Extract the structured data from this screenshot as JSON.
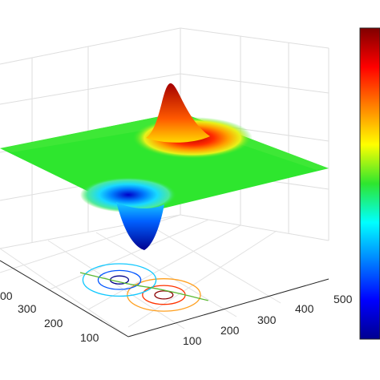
{
  "chart_data": {
    "type": "surface",
    "title": "",
    "xlabel": "",
    "ylabel": "",
    "zlabel": "",
    "x_ticks": [
      "100",
      "200",
      "300",
      "400",
      "500"
    ],
    "y_ticks": [
      "100",
      "200",
      "300",
      "00"
    ],
    "xlim": [
      0,
      500
    ],
    "ylim": [
      0,
      500
    ],
    "grid": true,
    "colormap": "jet",
    "colorbar": "right",
    "surface": {
      "baseline": 0,
      "peaks": [
        {
          "kind": "peak",
          "x": 300,
          "y": 330,
          "height": 1.0,
          "width": 45
        },
        {
          "kind": "trough",
          "x": 170,
          "y": 300,
          "height": -1.0,
          "width": 45
        }
      ]
    },
    "contours": [
      {
        "center_x": 300,
        "center_y": 330,
        "radii": [
          12,
          28,
          48
        ],
        "colors": [
          "#8b0000",
          "#ff3300",
          "#ffa020"
        ]
      },
      {
        "center_x": 170,
        "center_y": 300,
        "radii": [
          12,
          28,
          48
        ],
        "colors": [
          "#00008b",
          "#0055ff",
          "#10c8ff"
        ]
      },
      {
        "type": "zero-line",
        "color": "#5ab832"
      }
    ]
  }
}
